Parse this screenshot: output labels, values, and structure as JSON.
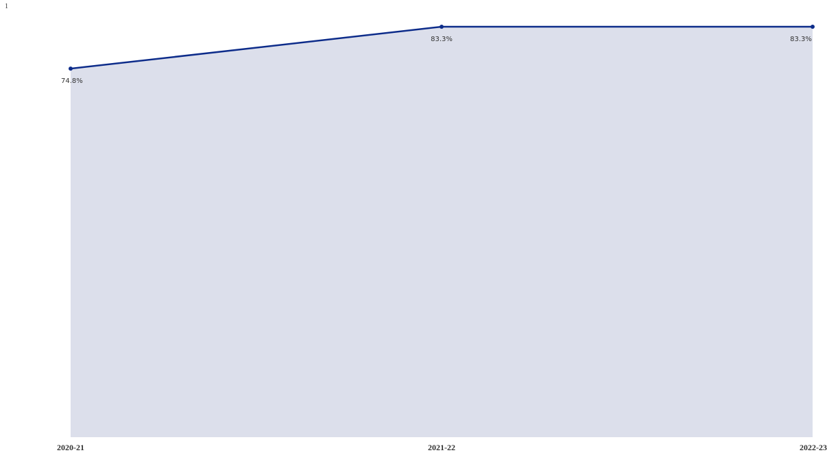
{
  "corner_text": "1",
  "chart_data": {
    "type": "area",
    "categories": [
      "2020-21",
      "2021-22",
      "2022-23"
    ],
    "series": [
      {
        "values": [
          74.8,
          83.3,
          83.3
        ],
        "labels": [
          "74.8%",
          "83.3%",
          "83.3%"
        ],
        "color": "#0d2c8a",
        "fill_color": "#dcdfeb"
      }
    ],
    "ylim": [
      0,
      83.3
    ],
    "grid": false,
    "legend": "none"
  }
}
